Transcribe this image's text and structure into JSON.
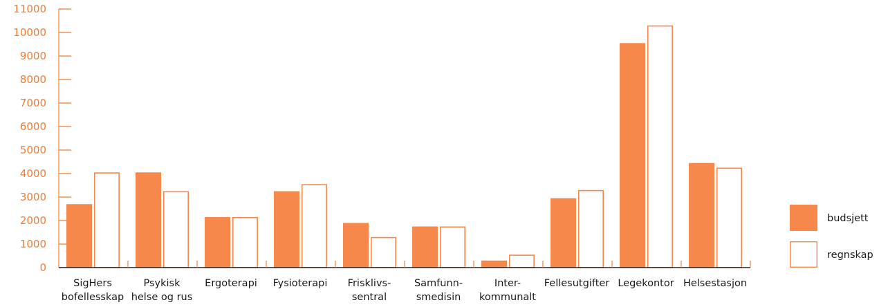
{
  "chart_data": {
    "type": "bar",
    "title": "",
    "xlabel": "",
    "ylabel": "",
    "ylim": [
      0,
      11000
    ],
    "yticks": [
      0,
      1000,
      2000,
      3000,
      4000,
      5000,
      6000,
      7000,
      8000,
      9000,
      10000,
      11000
    ],
    "grid": false,
    "legend_position": "right",
    "categories": [
      [
        "SigHers",
        "bofellesskap"
      ],
      [
        "Psykisk",
        "helse og rus"
      ],
      [
        "Ergoterapi"
      ],
      [
        "Fysioterapi"
      ],
      [
        "Frisklivs-",
        "sentral"
      ],
      [
        "Samfunn-",
        "smedisin"
      ],
      [
        "Inter-",
        "kommunalt"
      ],
      [
        "Fellesutgifter"
      ],
      [
        "Legekontor"
      ],
      [
        "Helsestasjon"
      ]
    ],
    "series": [
      {
        "name": "budsjett",
        "style": "filled",
        "values": [
          2700,
          4050,
          2150,
          3250,
          1900,
          1750,
          300,
          2950,
          9550,
          4450
        ]
      },
      {
        "name": "regnskap",
        "style": "outline",
        "values": [
          4050,
          3250,
          2150,
          3550,
          1300,
          1750,
          550,
          3300,
          10300,
          4250
        ]
      }
    ]
  },
  "colors": {
    "accent": "#f5884a",
    "axis": "#ef7d34",
    "baseline": "#222222",
    "text": "#1a1a1a"
  }
}
